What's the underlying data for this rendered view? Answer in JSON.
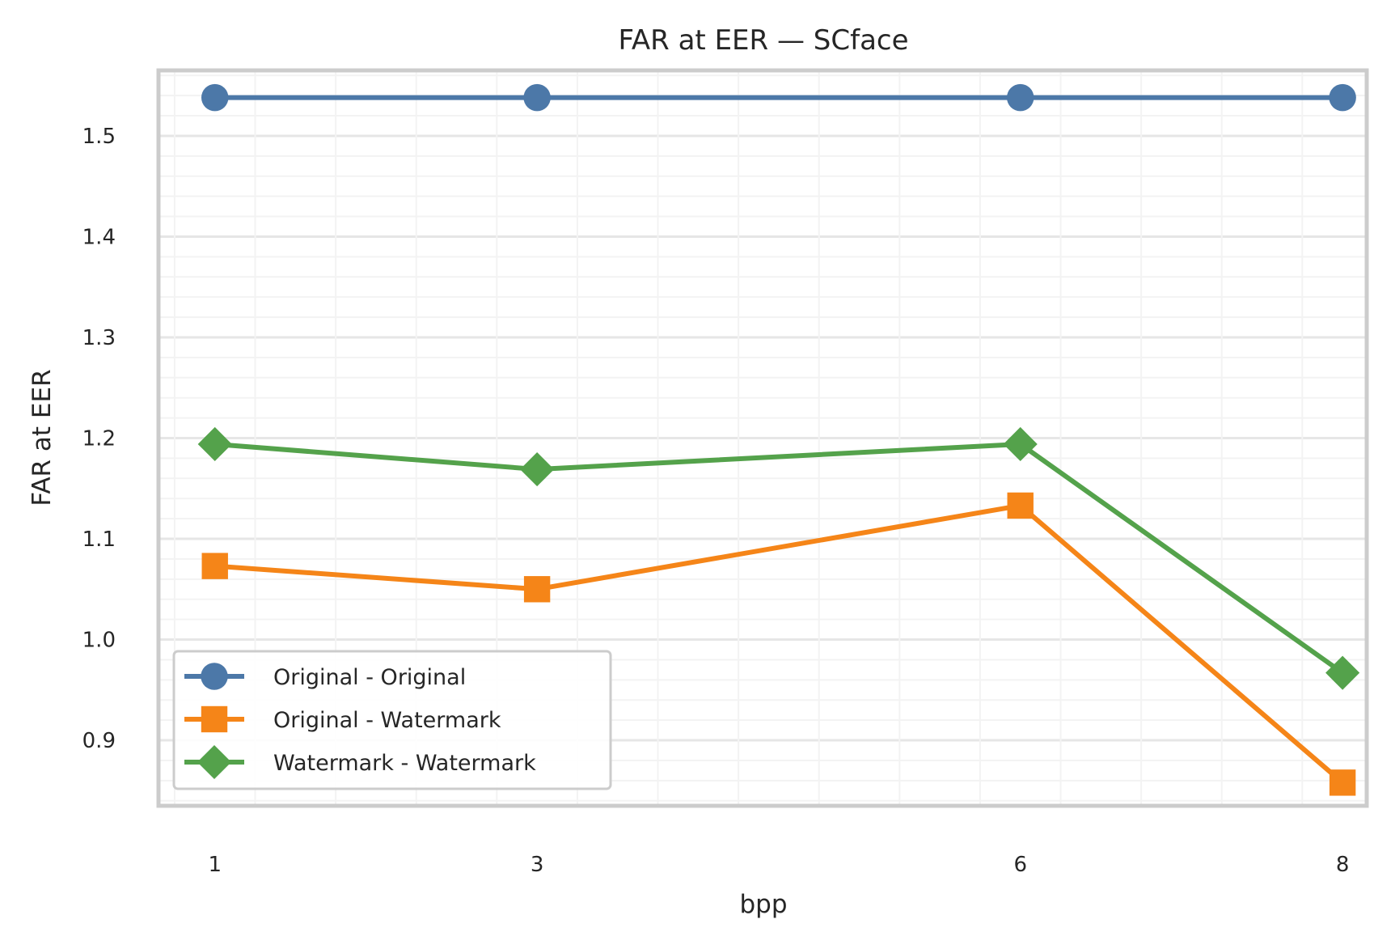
{
  "chart_data": {
    "type": "line",
    "title": "FAR at EER — SCface",
    "xlabel": "bpp",
    "ylabel": "FAR at EER",
    "x": [
      1,
      3,
      6,
      8
    ],
    "x_ticks": [
      "1",
      "3",
      "6",
      "8"
    ],
    "xlim": [
      0.65,
      8.15
    ],
    "y_ticks": [
      "0.9",
      "1.0",
      "1.1",
      "1.2",
      "1.3",
      "1.4",
      "1.5"
    ],
    "ylim": [
      0.835,
      1.565
    ],
    "grid": true,
    "legend_position": "lower-left",
    "series": [
      {
        "name": "Original - Original",
        "color": "#4c78a8",
        "marker": "circle",
        "values": [
          1.538,
          1.538,
          1.538,
          1.538
        ]
      },
      {
        "name": "Original - Watermark",
        "color": "#f58518",
        "marker": "square",
        "values": [
          1.073,
          1.05,
          1.133,
          0.858
        ]
      },
      {
        "name": "Watermark - Watermark",
        "color": "#54a24b",
        "marker": "diamond",
        "values": [
          1.194,
          1.169,
          1.194,
          0.967
        ]
      }
    ]
  }
}
